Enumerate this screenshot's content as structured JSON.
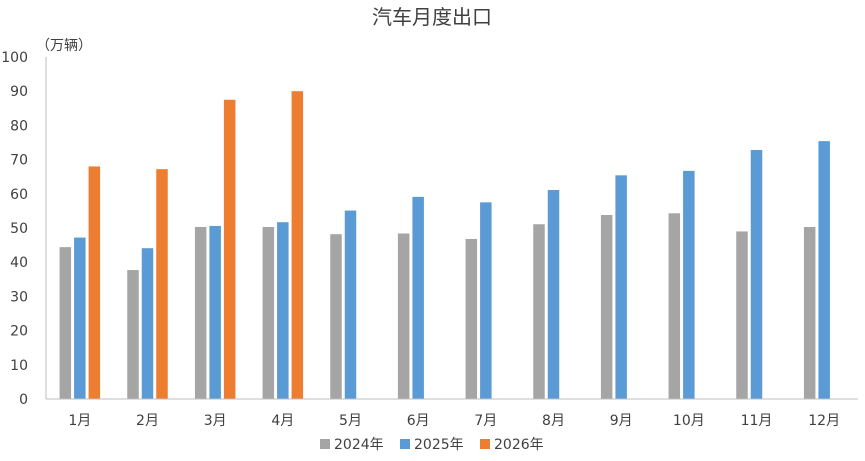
{
  "chart_data": {
    "type": "bar",
    "title": "汽车月度出口",
    "unit_label": "（万辆）",
    "categories": [
      "1月",
      "2月",
      "3月",
      "4月",
      "5月",
      "6月",
      "7月",
      "8月",
      "9月",
      "10月",
      "11月",
      "12月"
    ],
    "series": [
      {
        "name": "2024年",
        "color": "#a5a5a5",
        "values": [
          44.4,
          37.7,
          50.3,
          50.3,
          48.2,
          48.4,
          46.8,
          51.1,
          53.8,
          54.3,
          49.0,
          50.3
        ]
      },
      {
        "name": "2025年",
        "color": "#5b9bd5",
        "values": [
          47.2,
          44.1,
          50.6,
          51.7,
          55.1,
          59.1,
          57.5,
          61.1,
          65.4,
          66.7,
          72.8,
          75.4
        ]
      },
      {
        "name": "2026年",
        "color": "#ed7d31",
        "values": [
          68.0,
          67.2,
          87.5,
          90.0,
          null,
          null,
          null,
          null,
          null,
          null,
          null,
          null
        ]
      }
    ],
    "yticks": [
      "0",
      "10",
      "20",
      "30",
      "40",
      "50",
      "60",
      "70",
      "80",
      "90",
      "100"
    ],
    "ylim": [
      0,
      100
    ],
    "grid": false,
    "legend": "bottom"
  }
}
